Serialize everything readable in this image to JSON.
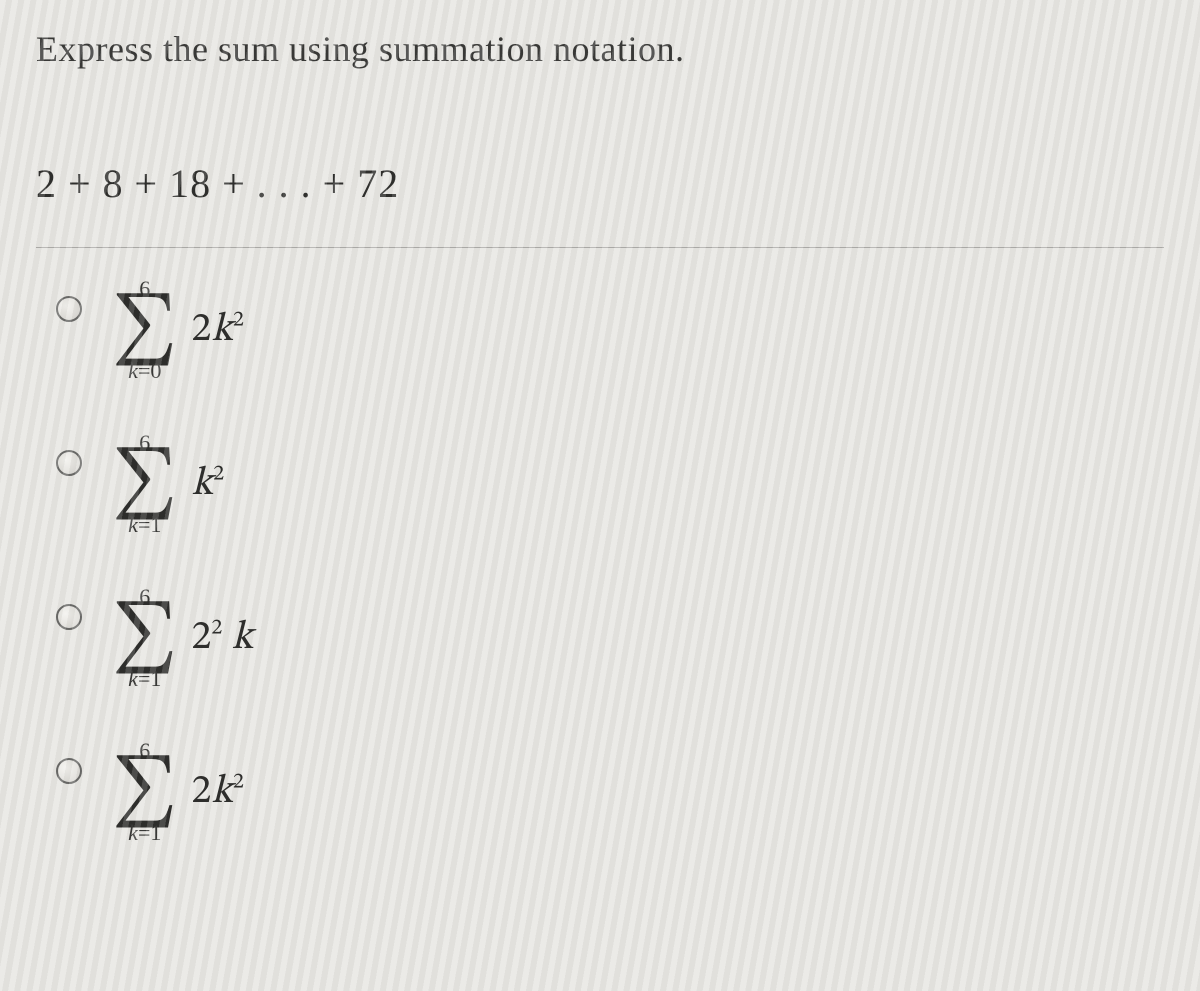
{
  "prompt": "Express the sum using summation notation.",
  "series": "2 + 8 + 18 + . . . + 72",
  "options": [
    {
      "upper": "6",
      "lower_var": "k",
      "lower_eq": "=",
      "lower_val": "0",
      "term_html": "2<span class=\"ital\">k</span><sup>2</sup>"
    },
    {
      "upper": "6",
      "lower_var": "k",
      "lower_eq": "=",
      "lower_val": "1",
      "term_html": "<span class=\"ital\">k</span><sup>2</sup>"
    },
    {
      "upper": "6",
      "lower_var": "k",
      "lower_eq": "=",
      "lower_val": "1",
      "term_html": "2<sup>2</sup> <span class=\"ital\">k</span>"
    },
    {
      "upper": "6",
      "lower_var": "k",
      "lower_eq": "=",
      "lower_val": "1",
      "term_html": "2<span class=\"ital\">k</span><sup>2</sup>"
    }
  ],
  "style": {
    "background": "#e8e7e3",
    "text_color": "#2a2a2a",
    "prompt_fontsize": 36,
    "series_fontsize": 40,
    "sigma_fontsize": 70,
    "limits_fontsize": 22,
    "term_fontsize": 40,
    "radio_size": 26,
    "radio_border": "#6a6a68"
  }
}
